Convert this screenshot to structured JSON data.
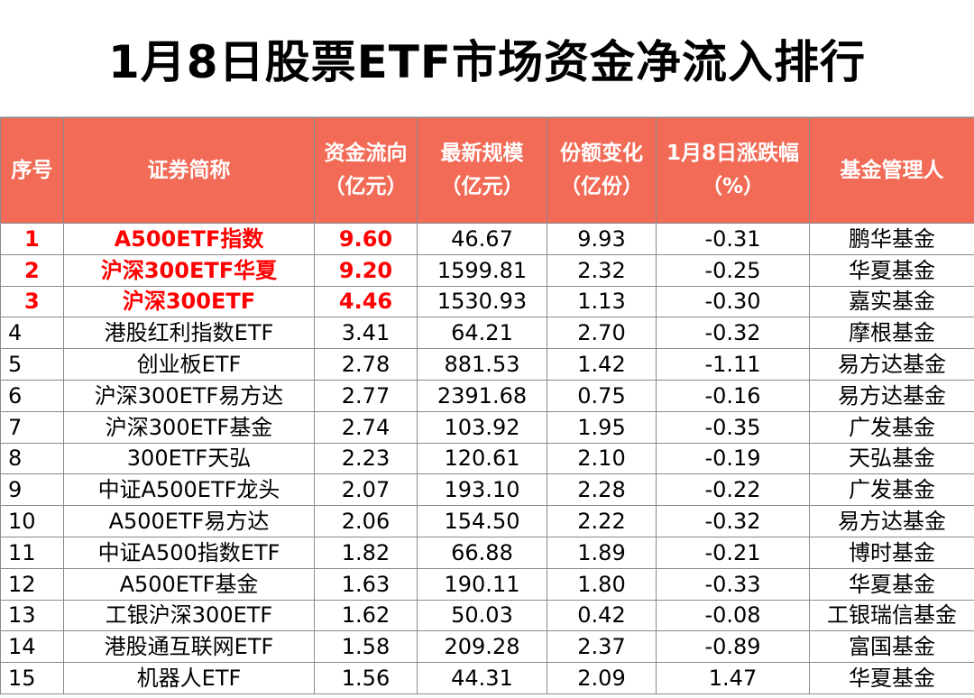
{
  "title": "1月8日股票ETF市场资金净流入排行",
  "columns": {
    "seq": "序号",
    "name": "证券简称",
    "flow": [
      "资金流向",
      "（亿元）"
    ],
    "scale": [
      "最新规模",
      "（亿元）"
    ],
    "share": [
      "份额变化",
      "（亿份）"
    ],
    "change": [
      "1月8日涨跌幅",
      "（%）"
    ],
    "manager": "基金管理人"
  },
  "rows": [
    {
      "seq": "1",
      "name": "A500ETF指数",
      "flow": "9.60",
      "scale": "46.67",
      "share": "9.93",
      "change": "-0.31",
      "manager": "鹏华基金",
      "highlight": true
    },
    {
      "seq": "2",
      "name": "沪深300ETF华夏",
      "flow": "9.20",
      "scale": "1599.81",
      "share": "2.32",
      "change": "-0.25",
      "manager": "华夏基金",
      "highlight": true
    },
    {
      "seq": "3",
      "name": "沪深300ETF",
      "flow": "4.46",
      "scale": "1530.93",
      "share": "1.13",
      "change": "-0.30",
      "manager": "嘉实基金",
      "highlight": true
    },
    {
      "seq": "4",
      "name": "港股红利指数ETF",
      "flow": "3.41",
      "scale": "64.21",
      "share": "2.70",
      "change": "-0.32",
      "manager": "摩根基金",
      "highlight": false
    },
    {
      "seq": "5",
      "name": "创业板ETF",
      "flow": "2.78",
      "scale": "881.53",
      "share": "1.42",
      "change": "-1.11",
      "manager": "易方达基金",
      "highlight": false
    },
    {
      "seq": "6",
      "name": "沪深300ETF易方达",
      "flow": "2.77",
      "scale": "2391.68",
      "share": "0.75",
      "change": "-0.16",
      "manager": "易方达基金",
      "highlight": false
    },
    {
      "seq": "7",
      "name": "沪深300ETF基金",
      "flow": "2.74",
      "scale": "103.92",
      "share": "1.95",
      "change": "-0.35",
      "manager": "广发基金",
      "highlight": false
    },
    {
      "seq": "8",
      "name": "300ETF天弘",
      "flow": "2.23",
      "scale": "120.61",
      "share": "2.10",
      "change": "-0.19",
      "manager": "天弘基金",
      "highlight": false
    },
    {
      "seq": "9",
      "name": "中证A500ETF龙头",
      "flow": "2.07",
      "scale": "193.10",
      "share": "2.28",
      "change": "-0.22",
      "manager": "广发基金",
      "highlight": false
    },
    {
      "seq": "10",
      "name": "A500ETF易方达",
      "flow": "2.06",
      "scale": "154.50",
      "share": "2.22",
      "change": "-0.32",
      "manager": "易方达基金",
      "highlight": false
    },
    {
      "seq": "11",
      "name": "中证A500指数ETF",
      "flow": "1.82",
      "scale": "66.88",
      "share": "1.89",
      "change": "-0.21",
      "manager": "博时基金",
      "highlight": false
    },
    {
      "seq": "12",
      "name": "A500ETF基金",
      "flow": "1.63",
      "scale": "190.11",
      "share": "1.80",
      "change": "-0.33",
      "manager": "华夏基金",
      "highlight": false
    },
    {
      "seq": "13",
      "name": "工银沪深300ETF",
      "flow": "1.62",
      "scale": "50.03",
      "share": "0.42",
      "change": "-0.08",
      "manager": "工银瑞信基金",
      "highlight": false
    },
    {
      "seq": "14",
      "name": "港股通互联网ETF",
      "flow": "1.58",
      "scale": "209.28",
      "share": "2.37",
      "change": "-0.89",
      "manager": "富国基金",
      "highlight": false
    },
    {
      "seq": "15",
      "name": "机器人ETF",
      "flow": "1.56",
      "scale": "44.31",
      "share": "2.09",
      "change": "1.47",
      "manager": "华夏基金",
      "highlight": false
    }
  ],
  "colors": {
    "header_bg": "#f26b57",
    "header_text": "#ffffff",
    "highlight_text": "#ff0000",
    "border": "#8a8a8a"
  }
}
